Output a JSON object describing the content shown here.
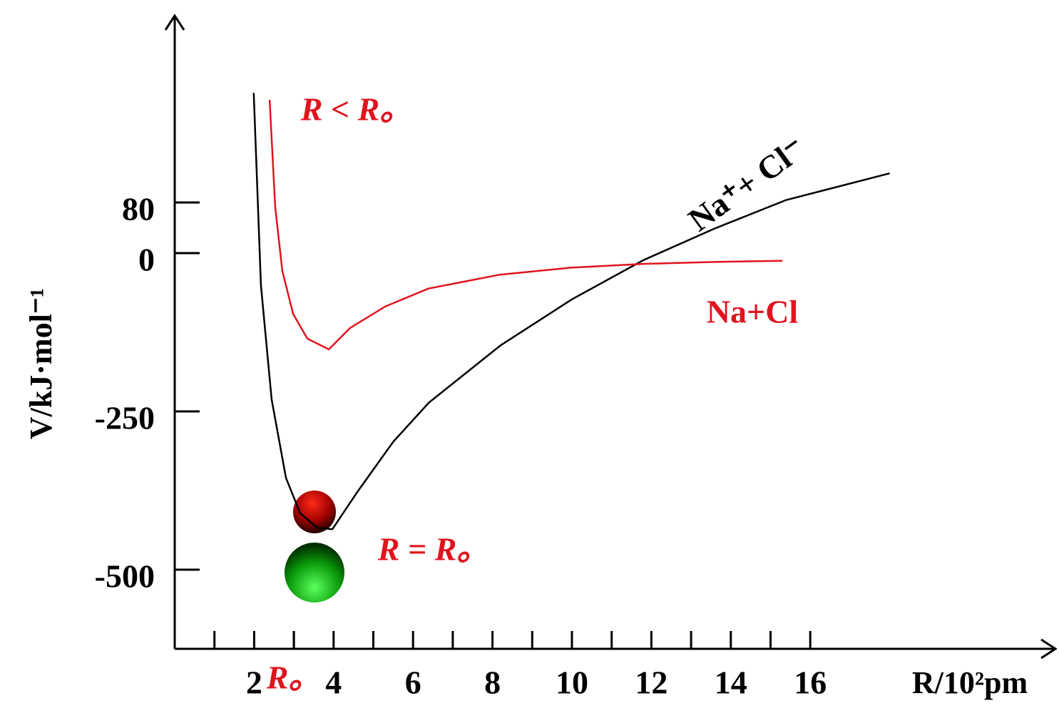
{
  "chart_data": {
    "type": "line",
    "x_label": "R/10²pm",
    "y_label": "V/kJ·mol⁻¹",
    "xlim": [
      0,
      22
    ],
    "ylim": [
      -625,
      370
    ],
    "xticks": [
      2,
      {
        "value": 3,
        "label": "R。"
      },
      4,
      6,
      8,
      10,
      12,
      14,
      16
    ],
    "xminor_ticks": [
      1,
      3,
      5,
      7,
      9,
      11,
      13,
      15
    ],
    "yticks": [
      80,
      0,
      -250,
      -500
    ],
    "accent_color": "#e0141e",
    "series": [
      {
        "name": "Na⁺+ Cl⁻",
        "color": "#000000",
        "x": [
          1.99,
          2.17,
          2.44,
          2.8,
          3.16,
          3.6,
          3.97,
          4.6,
          5.5,
          6.4,
          8.2,
          10.0,
          11.8,
          13.6,
          15.4,
          18.0
        ],
        "values": [
          253,
          -51,
          -231,
          -355,
          -411,
          -434,
          -436,
          -377,
          -298,
          -236,
          -146,
          -73,
          -11,
          39,
          84,
          126
        ]
      },
      {
        "name": "Na+Cl",
        "color": "#e0141e",
        "x": [
          2.39,
          2.53,
          2.71,
          2.98,
          3.34,
          3.88,
          4.42,
          5.31,
          6.39,
          8.19,
          9.98,
          11.8,
          13.6,
          15.3
        ],
        "values": [
          242,
          73,
          -28,
          -96,
          -135,
          -152,
          -118,
          -84,
          -56,
          -34,
          -23,
          -17,
          -14,
          -12
        ]
      }
    ],
    "annotations": [
      "R < R。",
      "R = R。"
    ]
  }
}
